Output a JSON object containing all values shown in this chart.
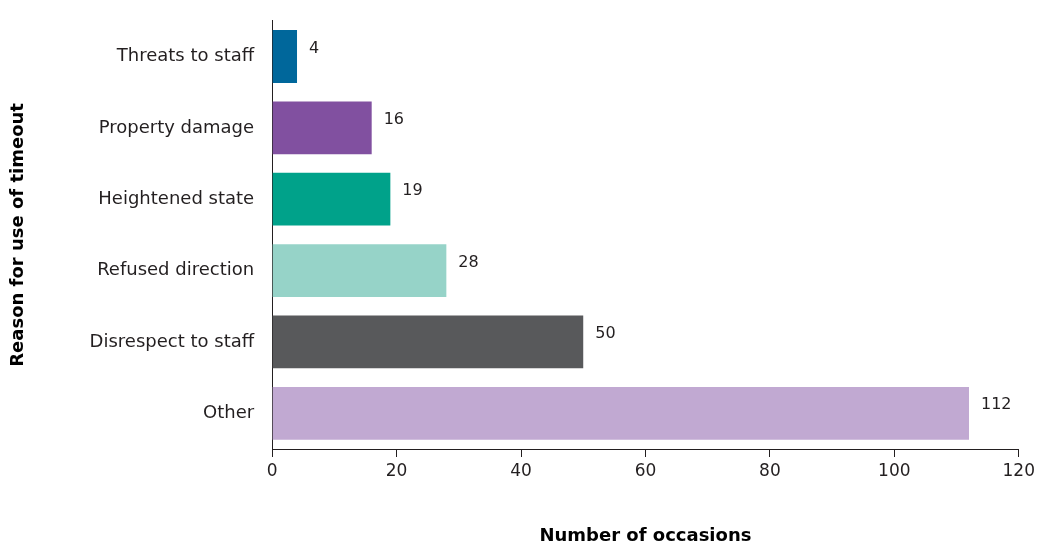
{
  "chart_data": {
    "type": "bar",
    "orientation": "horizontal",
    "xlabel": "Number of occasions",
    "ylabel": "Reason for use of timeout",
    "categories": [
      "Threats to staff",
      "Property damage",
      "Heightened state",
      "Refused direction",
      "Disrespect to staff",
      "Other"
    ],
    "values": [
      4,
      16,
      19,
      28,
      50,
      112
    ],
    "colors": [
      "#00679b",
      "#8150a0",
      "#00a28a",
      "#96d3c8",
      "#58595b",
      "#c1a9d2"
    ],
    "xlim": [
      0,
      120
    ],
    "xticks": [
      0,
      20,
      40,
      60,
      80,
      100,
      120
    ],
    "data_labels": true,
    "grid": false,
    "legend": false
  }
}
